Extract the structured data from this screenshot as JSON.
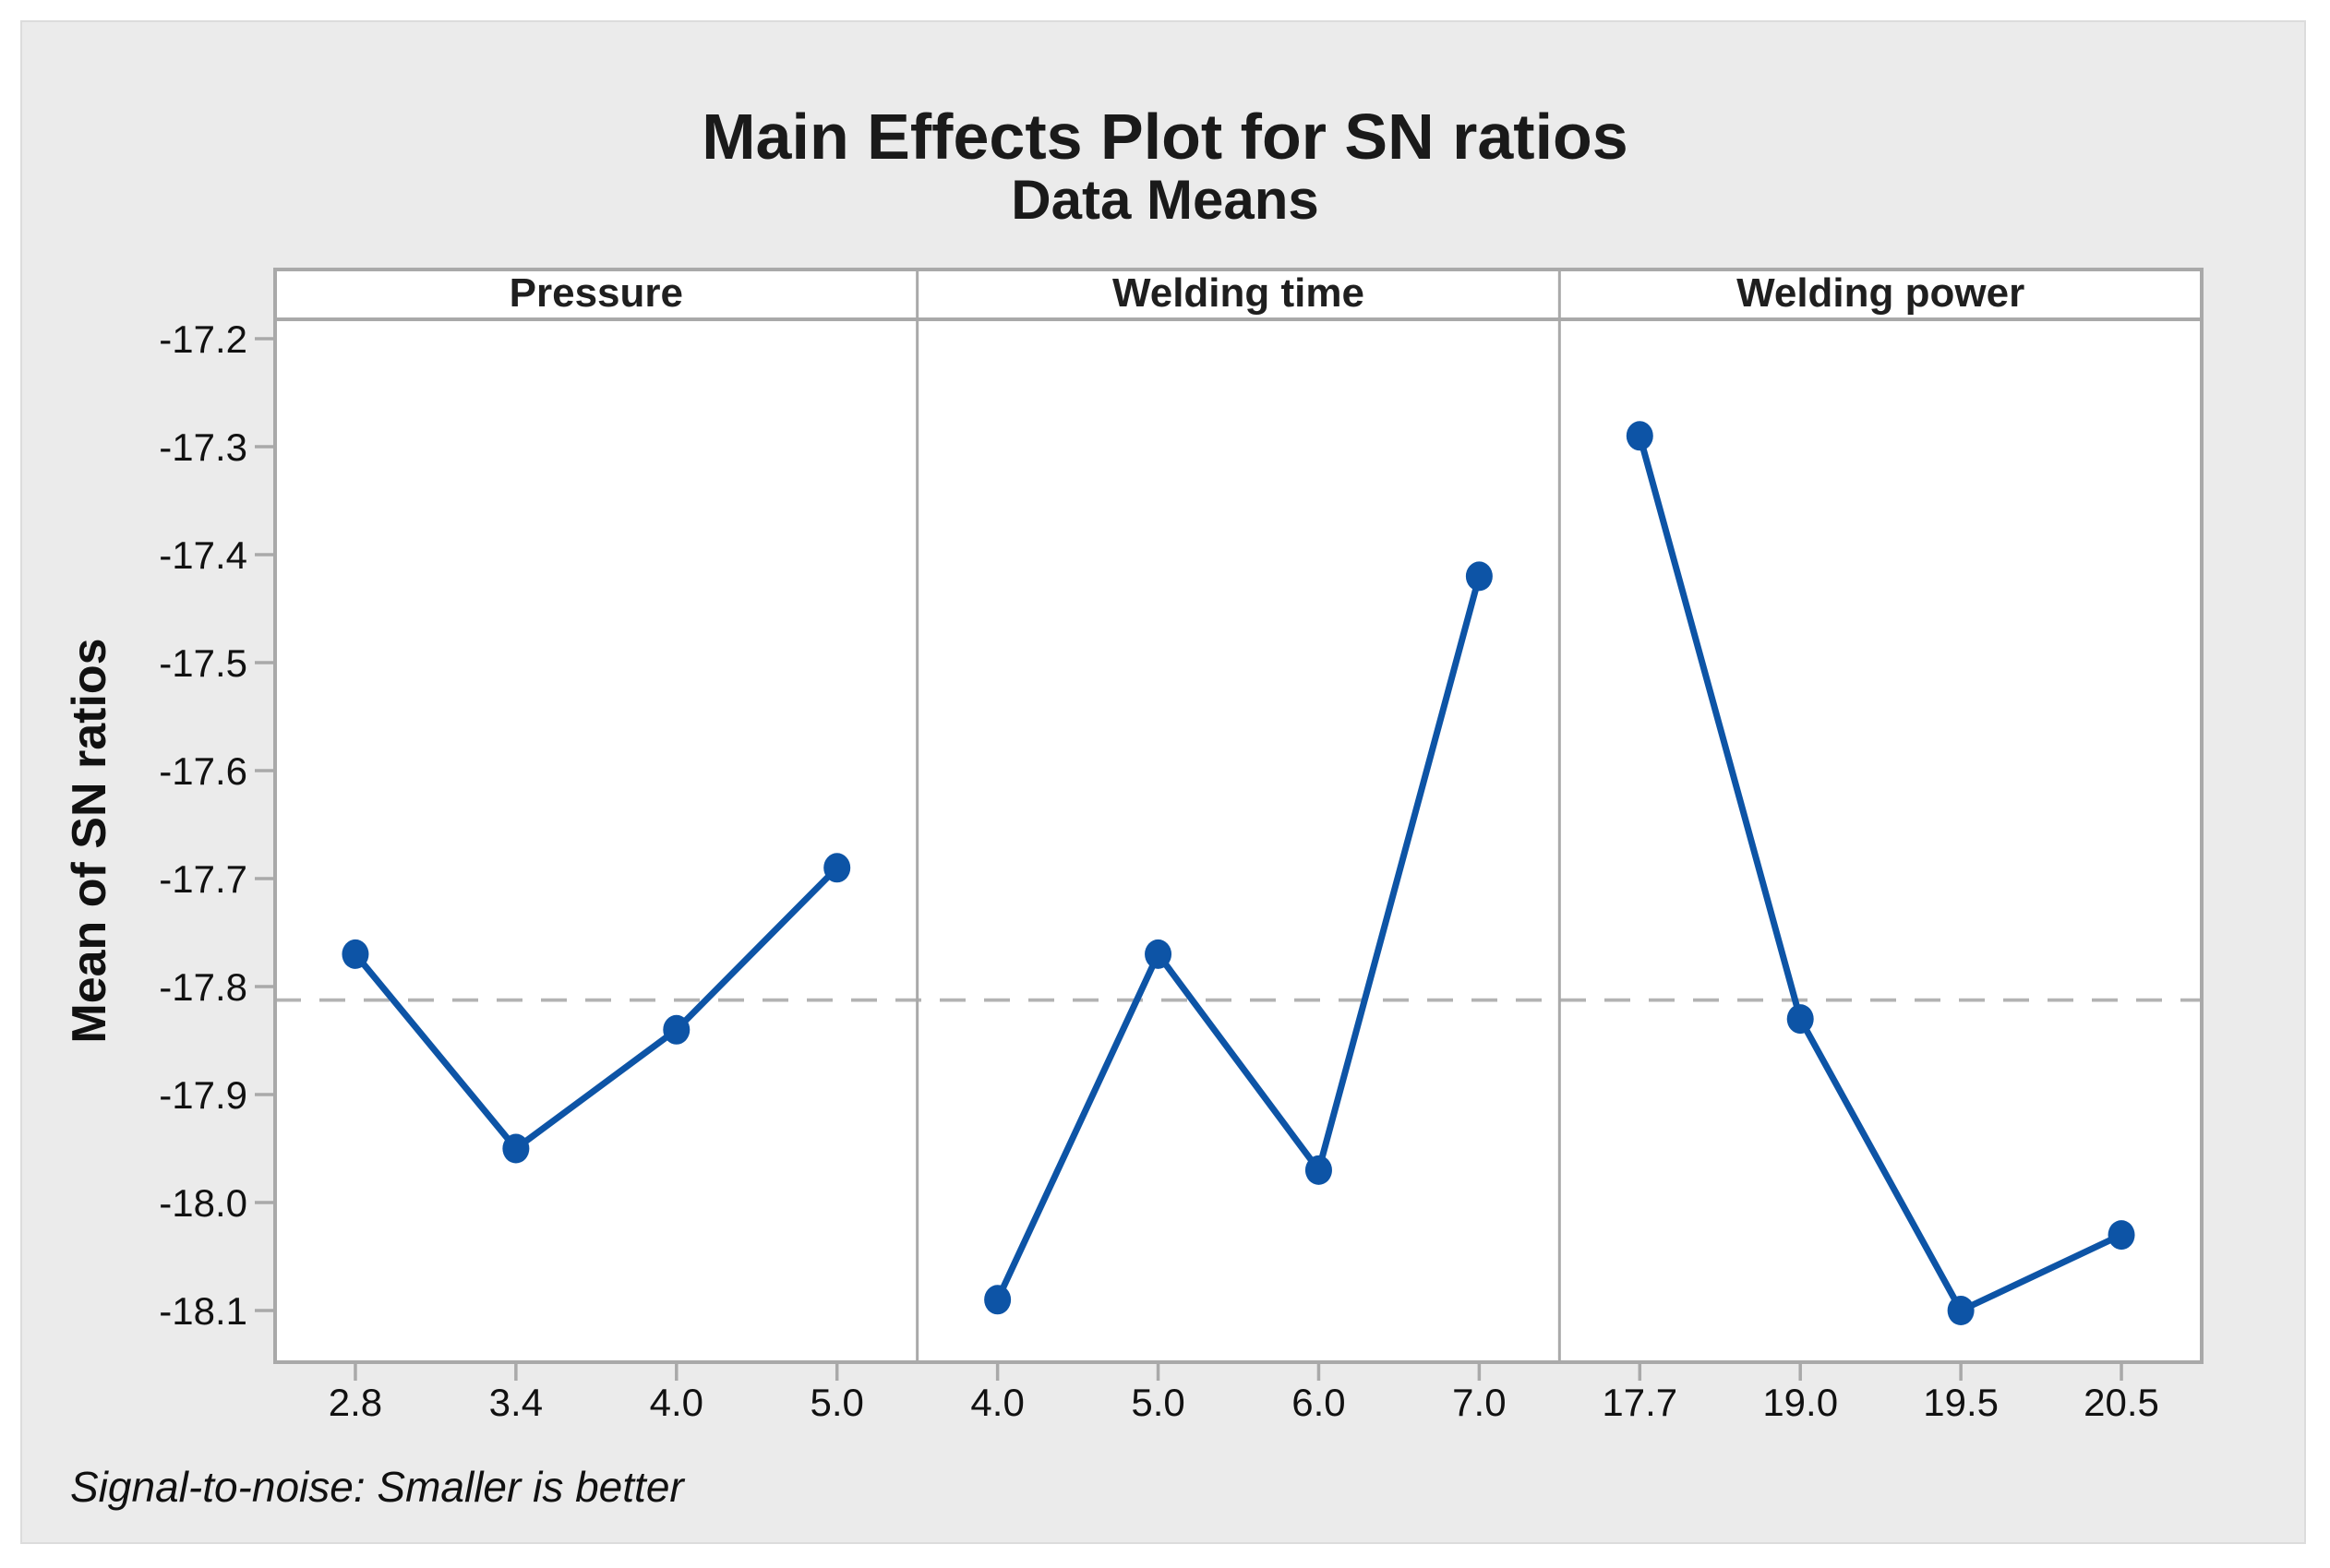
{
  "title": "Main Effects Plot for SN ratios",
  "subtitle": "Data Means",
  "y_axis_title": "Mean of SN ratios",
  "footnote": "Signal-to-noise: Smaller is better",
  "colors": {
    "series_blue": "#0d54a6",
    "axis_gray": "#a9a9a9",
    "reference_dash_gray": "#b3b3b3",
    "canvas_background": "#ebebeb",
    "panel_background": "#ffffff",
    "text": "#111111"
  },
  "chart_data": {
    "type": "line",
    "title": "Main Effects Plot for SN ratios",
    "subtitle": "Data Means",
    "ylabel": "Mean of SN ratios",
    "ylim": [
      -18.15,
      -17.18
    ],
    "yticks": [
      "-17.2",
      "-17.3",
      "-17.4",
      "-17.5",
      "-17.6",
      "-17.7",
      "-17.8",
      "-17.9",
      "-18.0",
      "-18.1"
    ],
    "reference_line": -17.8125,
    "reference_line_style": "dashed",
    "grid": false,
    "legend": "none",
    "panels": [
      {
        "label": "Pressure",
        "categories": [
          "2.8",
          "3.4",
          "4.0",
          "5.0"
        ],
        "values": [
          -17.77,
          -17.95,
          -17.84,
          -17.69
        ]
      },
      {
        "label": "Welding time",
        "categories": [
          "4.0",
          "5.0",
          "6.0",
          "7.0"
        ],
        "values": [
          -18.09,
          -17.77,
          -17.97,
          -17.42
        ]
      },
      {
        "label": "Welding power",
        "categories": [
          "17.7",
          "19.0",
          "19.5",
          "20.5"
        ],
        "values": [
          -17.29,
          -17.83,
          -18.1,
          -18.03
        ]
      }
    ]
  }
}
